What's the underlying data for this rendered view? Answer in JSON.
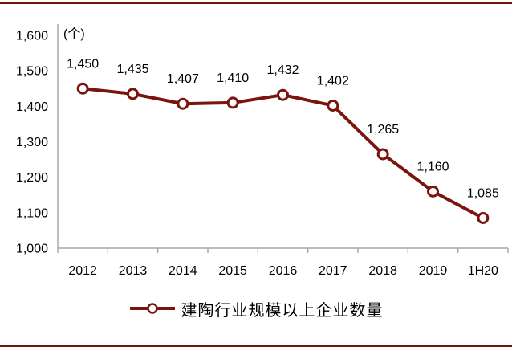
{
  "page": {
    "rule_color": "#74130B",
    "background": "#ffffff"
  },
  "chart_data": {
    "type": "line",
    "title": "",
    "unit_label": "(个)",
    "categories": [
      "2012",
      "2013",
      "2014",
      "2015",
      "2016",
      "2017",
      "2018",
      "2019",
      "1H20"
    ],
    "series": [
      {
        "name": "建陶行业规模以上企业数量",
        "values": [
          1450,
          1435,
          1407,
          1410,
          1432,
          1402,
          1265,
          1160,
          1085
        ],
        "color": "#7A150E",
        "marker": "open-circle",
        "marker_fill": "#ffffff"
      }
    ],
    "data_labels": [
      "1,450",
      "1,435",
      "1,407",
      "1,410",
      "1,432",
      "1,402",
      "1,265",
      "1,160",
      "1,085"
    ],
    "xlabel": "",
    "ylabel": "",
    "ylim": [
      1000,
      1600
    ],
    "y_tick_step": 100,
    "y_tick_labels": [
      "1,000",
      "1,100",
      "1,200",
      "1,300",
      "1,400",
      "1,500",
      "1,600"
    ],
    "grid": false,
    "legend_position": "bottom",
    "axis_color": "#A6A6A6",
    "text_color": "#000000"
  }
}
